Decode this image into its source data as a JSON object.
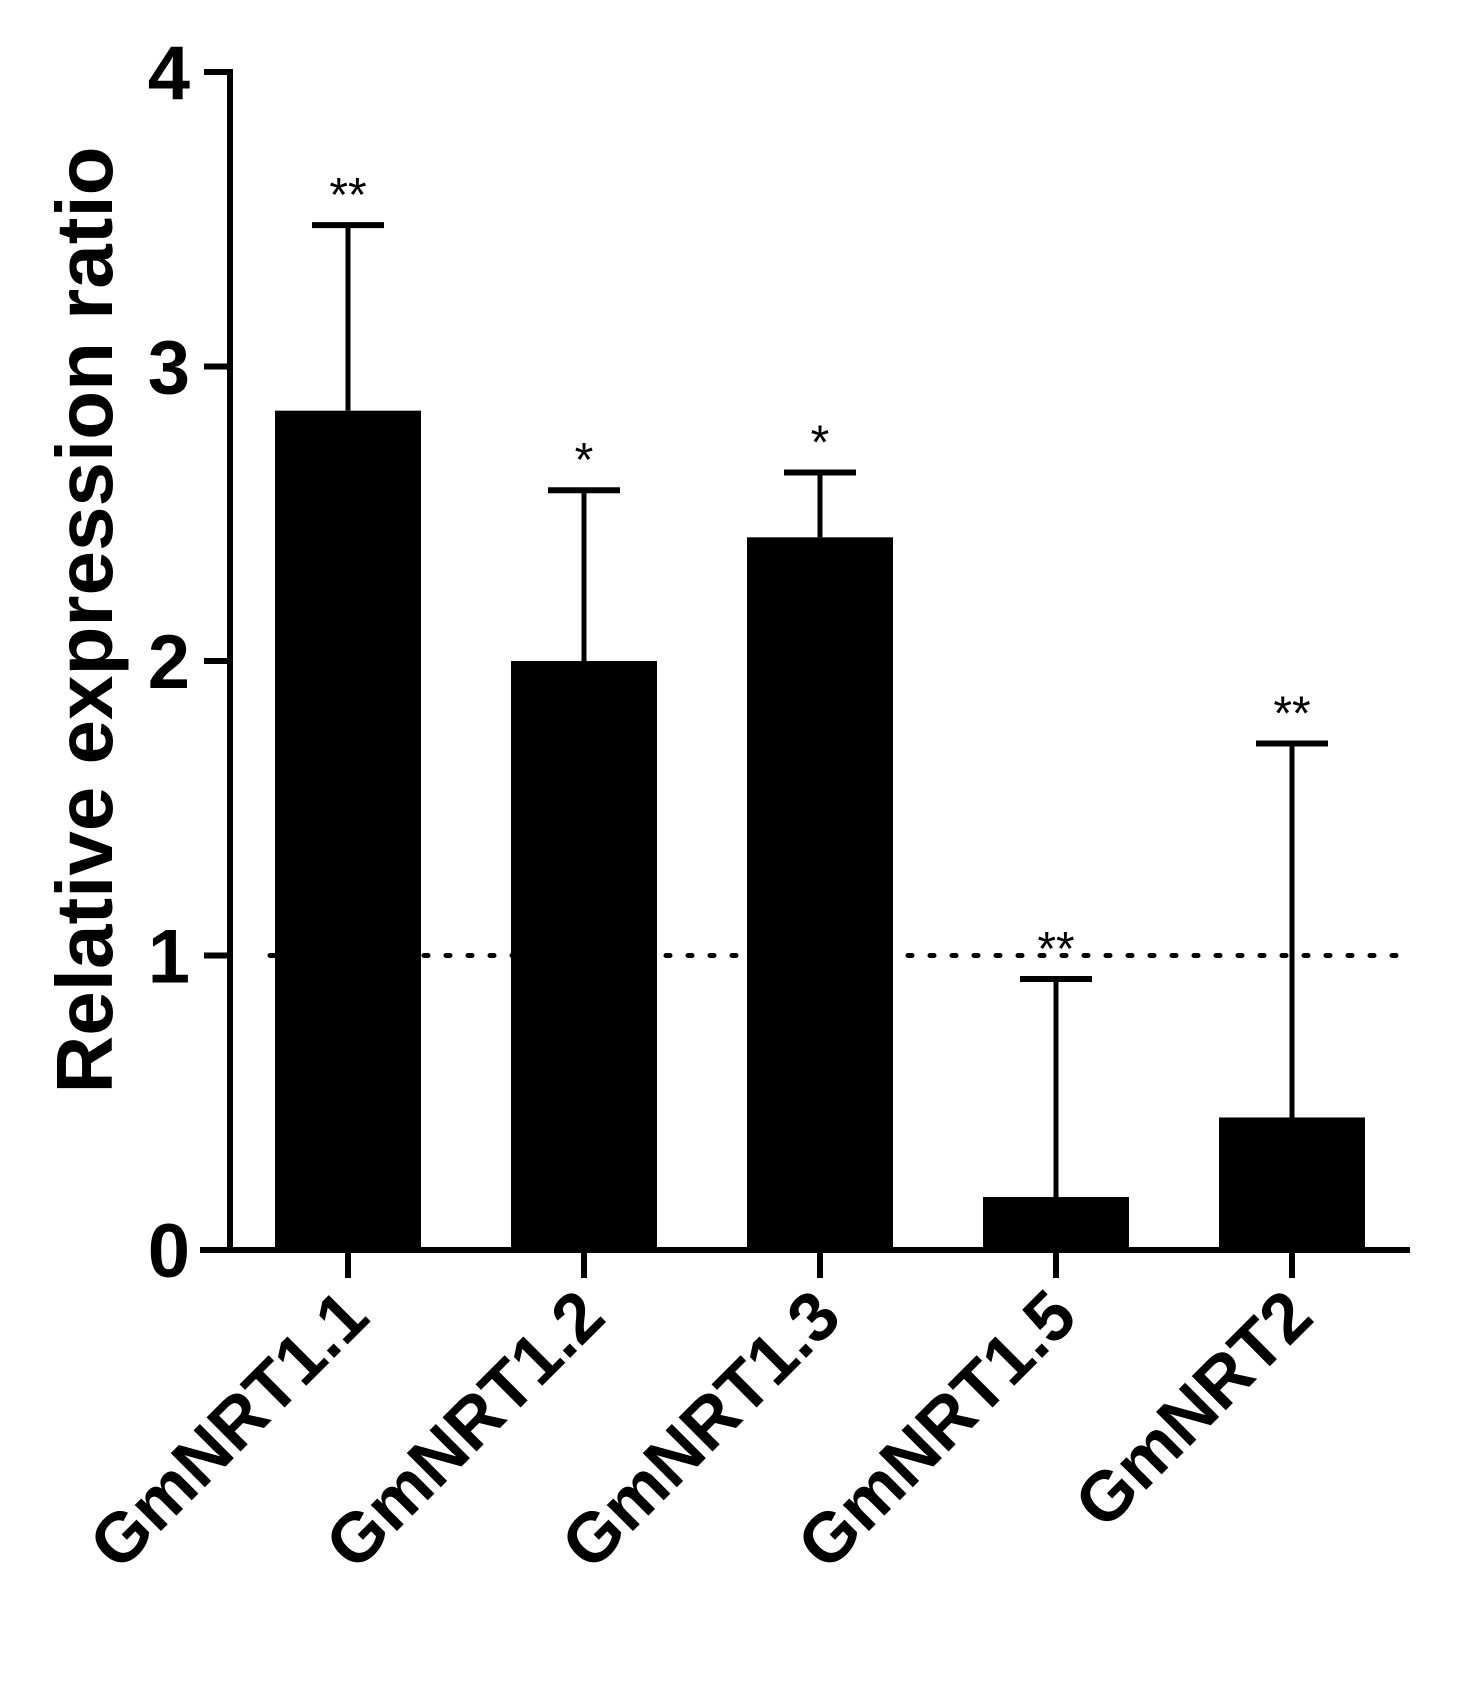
{
  "chart_data": {
    "type": "bar",
    "ylabel": "Relative expression ratio",
    "xlabel": "",
    "categories": [
      "GmNRT1.1",
      "GmNRT1.2",
      "GmNRT1.3",
      "GmNRT1.5",
      "GmNRT2"
    ],
    "values": [
      2.85,
      2.0,
      2.42,
      0.18,
      0.45
    ],
    "error_upper": [
      3.48,
      2.58,
      2.64,
      0.92,
      1.72
    ],
    "significance": [
      "**",
      "*",
      "*",
      "**",
      "**"
    ],
    "reference_line": 1,
    "ylim": [
      0,
      4
    ],
    "yticks": [
      "0",
      "1",
      "2",
      "3",
      "4"
    ],
    "grid": false,
    "bar_color": "#000000"
  }
}
